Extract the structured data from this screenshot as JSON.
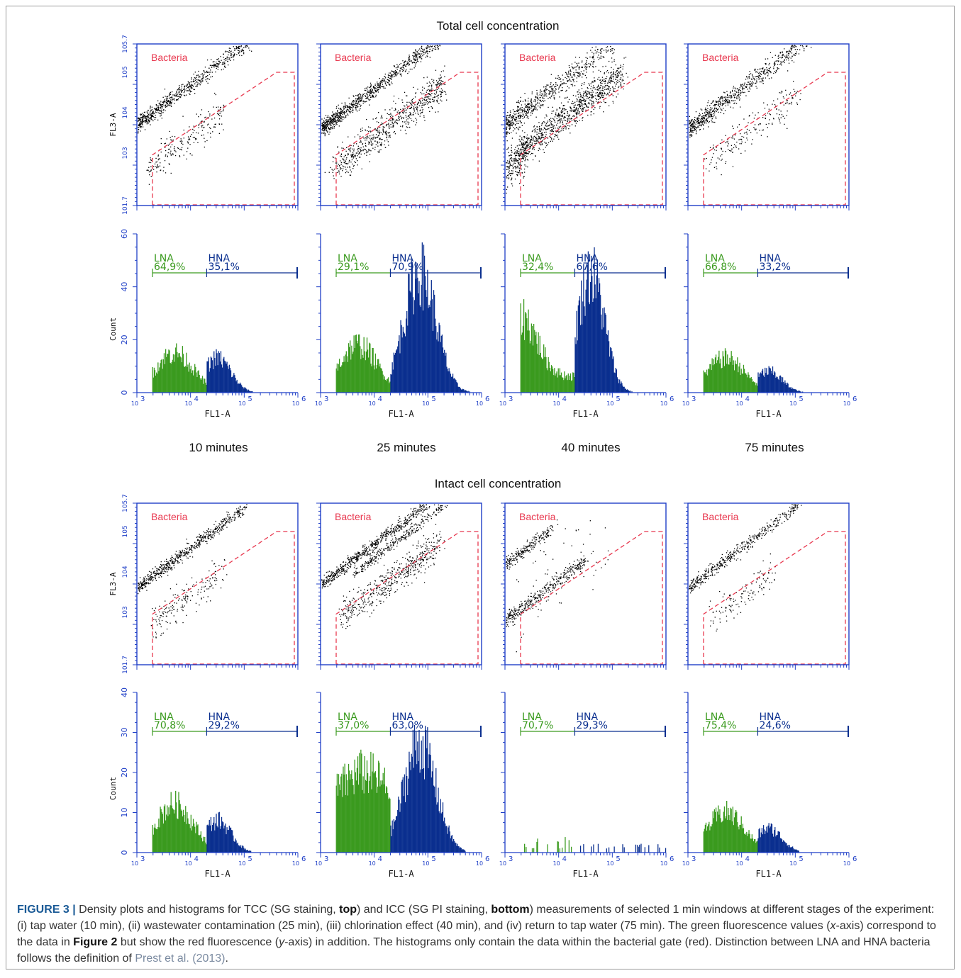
{
  "figure": {
    "section_titles": [
      "Total cell concentration",
      "Intact cell concentration"
    ],
    "time_labels": [
      "10 minutes",
      "25 minutes",
      "40 minutes",
      "75 minutes"
    ],
    "gate_label": "Bacteria",
    "density_ylabel": "FL3-A",
    "density_xlabel": "FL1-A",
    "hist_ylabel": "Count",
    "hist_xlabel": "FL1-A",
    "colors": {
      "axis": "#1f3fc7",
      "gate": "#e8384f",
      "lna": "#3a9a1e",
      "hna": "#0a2f8f",
      "dots": "#000000",
      "gate_text": "#e8384f"
    }
  },
  "chart_data": [
    {
      "type": "scatter",
      "group": "Total cell concentration",
      "time": "10 minutes",
      "xlabel": "FL1-A",
      "ylabel": "FL3-A",
      "x_scale": "log",
      "y_scale": "log",
      "xlim": [
        1000,
        1000000
      ],
      "ylim": [
        50,
        500000
      ],
      "y_ticks": [
        "1.7",
        "3",
        "4",
        "5",
        "5.7"
      ],
      "gate": "Bacteria"
    },
    {
      "type": "scatter",
      "group": "Total cell concentration",
      "time": "25 minutes",
      "xlabel": "FL1-A",
      "ylabel": "FL3-A",
      "x_scale": "log",
      "y_scale": "log",
      "xlim": [
        1000,
        1000000
      ],
      "ylim": [
        50,
        500000
      ],
      "gate": "Bacteria"
    },
    {
      "type": "scatter",
      "group": "Total cell concentration",
      "time": "40 minutes",
      "xlabel": "FL1-A",
      "ylabel": "FL3-A",
      "x_scale": "log",
      "y_scale": "log",
      "xlim": [
        1000,
        1000000
      ],
      "ylim": [
        50,
        500000
      ],
      "gate": "Bacteria"
    },
    {
      "type": "scatter",
      "group": "Total cell concentration",
      "time": "75 minutes",
      "xlabel": "FL1-A",
      "ylabel": "FL3-A",
      "x_scale": "log",
      "y_scale": "log",
      "xlim": [
        1000,
        1000000
      ],
      "ylim": [
        50,
        500000
      ],
      "gate": "Bacteria"
    },
    {
      "type": "bar",
      "group": "Total cell concentration",
      "time": "10 minutes",
      "xlabel": "FL1-A",
      "ylabel": "Count",
      "x_scale": "log",
      "xlim": [
        1000,
        1000000
      ],
      "ylim": [
        0,
        60
      ],
      "y_ticks": [
        0,
        20,
        40,
        60
      ],
      "gates": [
        {
          "name": "LNA",
          "percent": "64,9%"
        },
        {
          "name": "HNA",
          "percent": "35,1%"
        }
      ],
      "lna_peak": 15,
      "hna_peak": 13
    },
    {
      "type": "bar",
      "group": "Total cell concentration",
      "time": "25 minutes",
      "xlabel": "FL1-A",
      "ylabel": "Count",
      "x_scale": "log",
      "xlim": [
        1000,
        1000000
      ],
      "ylim": [
        0,
        60
      ],
      "gates": [
        {
          "name": "LNA",
          "percent": "29,1%"
        },
        {
          "name": "HNA",
          "percent": "70,9%"
        }
      ],
      "lna_peak": 18,
      "hna_peak": 45
    },
    {
      "type": "bar",
      "group": "Total cell concentration",
      "time": "40 minutes",
      "xlabel": "FL1-A",
      "ylabel": "Count",
      "x_scale": "log",
      "xlim": [
        1000,
        1000000
      ],
      "ylim": [
        0,
        60
      ],
      "gates": [
        {
          "name": "LNA",
          "percent": "32,4%"
        },
        {
          "name": "HNA",
          "percent": "67,6%"
        }
      ],
      "lna_peak": 25,
      "hna_peak": 45
    },
    {
      "type": "bar",
      "group": "Total cell concentration",
      "time": "75 minutes",
      "xlabel": "FL1-A",
      "ylabel": "Count",
      "x_scale": "log",
      "xlim": [
        1000,
        1000000
      ],
      "ylim": [
        0,
        60
      ],
      "gates": [
        {
          "name": "LNA",
          "percent": "66,8%"
        },
        {
          "name": "HNA",
          "percent": "33,2%"
        }
      ],
      "lna_peak": 13,
      "hna_peak": 8
    },
    {
      "type": "scatter",
      "group": "Intact cell concentration",
      "time": "10 minutes",
      "xlabel": "FL1-A",
      "ylabel": "FL3-A",
      "x_scale": "log",
      "y_scale": "log",
      "xlim": [
        1000,
        1000000
      ],
      "ylim": [
        50,
        500000
      ],
      "gate": "Bacteria"
    },
    {
      "type": "scatter",
      "group": "Intact cell concentration",
      "time": "25 minutes",
      "xlabel": "FL1-A",
      "ylabel": "FL3-A",
      "x_scale": "log",
      "y_scale": "log",
      "xlim": [
        1000,
        1000000
      ],
      "ylim": [
        50,
        500000
      ],
      "gate": "Bacteria"
    },
    {
      "type": "scatter",
      "group": "Intact cell concentration",
      "time": "40 minutes",
      "xlabel": "FL1-A",
      "ylabel": "FL3-A",
      "x_scale": "log",
      "y_scale": "log",
      "xlim": [
        1000,
        1000000
      ],
      "ylim": [
        50,
        500000
      ],
      "gate": "Bacteria"
    },
    {
      "type": "scatter",
      "group": "Intact cell concentration",
      "time": "75 minutes",
      "xlabel": "FL1-A",
      "ylabel": "FL3-A",
      "x_scale": "log",
      "y_scale": "log",
      "xlim": [
        1000,
        1000000
      ],
      "ylim": [
        50,
        500000
      ],
      "gate": "Bacteria"
    },
    {
      "type": "bar",
      "group": "Intact cell concentration",
      "time": "10 minutes",
      "xlabel": "FL1-A",
      "ylabel": "Count",
      "x_scale": "log",
      "xlim": [
        1000,
        1000000
      ],
      "ylim": [
        0,
        40
      ],
      "y_ticks": [
        0,
        10,
        20,
        30,
        40
      ],
      "gates": [
        {
          "name": "LNA",
          "percent": "70,8%"
        },
        {
          "name": "HNA",
          "percent": "29,2%"
        }
      ],
      "lna_peak": 12,
      "hna_peak": 8
    },
    {
      "type": "bar",
      "group": "Intact cell concentration",
      "time": "25 minutes",
      "xlabel": "FL1-A",
      "ylabel": "Count",
      "x_scale": "log",
      "xlim": [
        1000,
        1000000
      ],
      "ylim": [
        0,
        40
      ],
      "gates": [
        {
          "name": "LNA",
          "percent": "37,0%"
        },
        {
          "name": "HNA",
          "percent": "63,0%"
        }
      ],
      "lna_peak": 20,
      "hna_peak": 27
    },
    {
      "type": "bar",
      "group": "Intact cell concentration",
      "time": "40 minutes",
      "xlabel": "FL1-A",
      "ylabel": "Count",
      "x_scale": "log",
      "xlim": [
        1000,
        1000000
      ],
      "ylim": [
        0,
        40
      ],
      "gates": [
        {
          "name": "LNA",
          "percent": "70,7%"
        },
        {
          "name": "HNA",
          "percent": "29,3%"
        }
      ],
      "lna_peak": 4,
      "hna_peak": 1
    },
    {
      "type": "bar",
      "group": "Intact cell concentration",
      "time": "75 minutes",
      "xlabel": "FL1-A",
      "ylabel": "Count",
      "x_scale": "log",
      "xlim": [
        1000,
        1000000
      ],
      "ylim": [
        0,
        40
      ],
      "gates": [
        {
          "name": "LNA",
          "percent": "75,4%"
        },
        {
          "name": "HNA",
          "percent": "24,6%"
        }
      ],
      "lna_peak": 10,
      "hna_peak": 6
    }
  ],
  "caption": {
    "label": "FIGURE 3 |",
    "t1": " Density plots and histograms for TCC (SG staining, ",
    "b1": "top",
    "t2": ") and ICC (SG PI staining, ",
    "b2": "bottom",
    "t3": ") measurements of selected 1 min windows at different stages of the experiment: (i) tap water (10 min), (ii) wastewater contamination (25 min), (iii) chlorination effect (40 min), and (iv) return to tap water (75 min). The green fluorescence values (",
    "i1": "x",
    "t4": "-axis) correspond to the data in ",
    "b3": "Figure 2",
    "t5": " but show the red fluorescence (",
    "i2": "y",
    "t6": "-axis) in addition. The histograms only contain the data within the bacterial gate (red). Distinction between LNA and HNA bacteria follows the definition of ",
    "ref": "Prest et al. (2013)",
    "t7": "."
  }
}
